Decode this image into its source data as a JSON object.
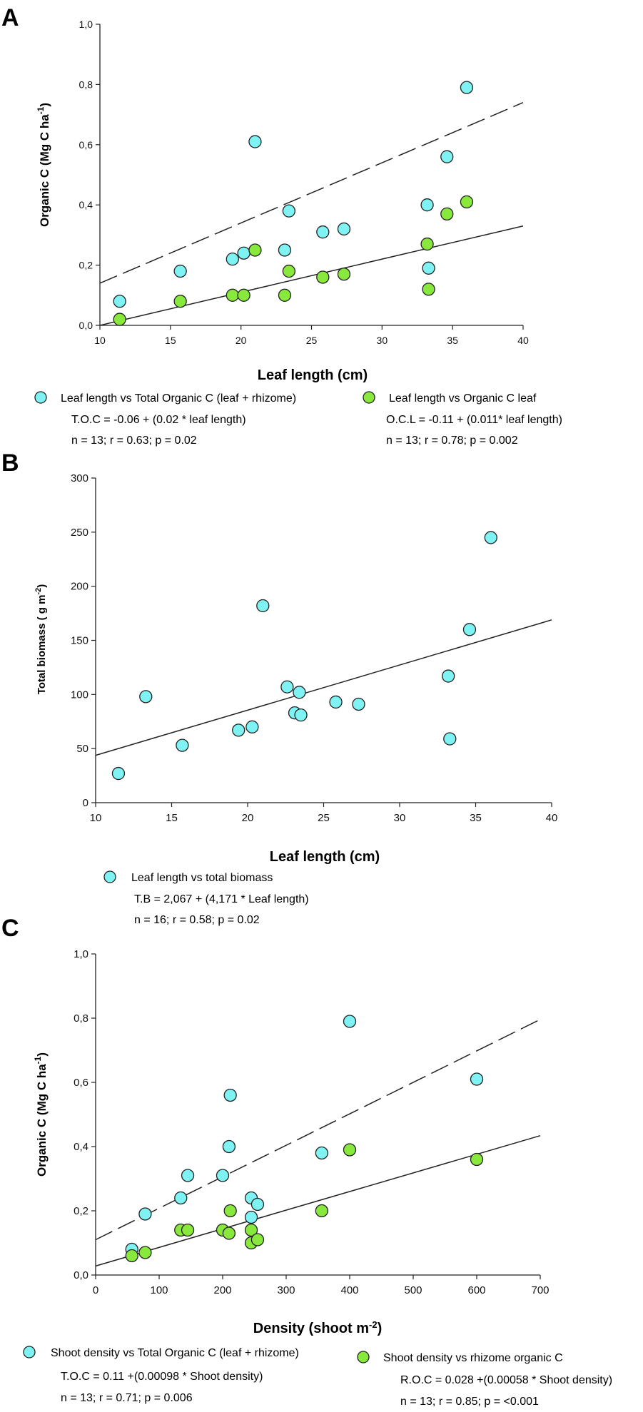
{
  "chart_data": [
    {
      "panel": "A",
      "type": "scatter",
      "xlabel": "Leaf length (cm)",
      "ylabel": "Organic C (Mg C ha",
      "ylabel_sup": "-1",
      "ylabel_tail": ")",
      "xlim": [
        10,
        40
      ],
      "ylim": [
        0,
        1.0
      ],
      "xticks": [
        10,
        15,
        20,
        25,
        30,
        35,
        40
      ],
      "xtick_labels": [
        "10",
        "15",
        "20",
        "25",
        "30",
        "35",
        "40"
      ],
      "yticks": [
        0,
        0.2,
        0.4,
        0.6,
        0.8,
        1.0
      ],
      "ytick_labels": [
        "0,0",
        "0,2",
        "0,4",
        "0,6",
        "0,8",
        "1,0"
      ],
      "series": [
        {
          "name": "Leaf length vs Total Organic C (leaf + rhizome)",
          "color": "#7ff3f3",
          "x": [
            11.4,
            15.7,
            19.4,
            20.2,
            21.0,
            23.1,
            23.4,
            25.8,
            27.3,
            33.2,
            33.3,
            34.6,
            36.0
          ],
          "y": [
            0.08,
            0.18,
            0.22,
            0.24,
            0.61,
            0.25,
            0.38,
            0.31,
            0.32,
            0.4,
            0.19,
            0.56,
            0.79
          ],
          "fit": {
            "intercept": -0.06,
            "slope": 0.02,
            "x_range": [
              10,
              40
            ],
            "style": "dashed"
          },
          "equation": "T.O.C = -0.06 + (0.02 * leaf length)",
          "stats": "n = 13; r = 0.63; p = 0.02"
        },
        {
          "name": "Leaf length vs Organic C leaf",
          "color": "#88e83b",
          "x": [
            11.4,
            15.7,
            19.4,
            20.2,
            21.0,
            23.1,
            23.4,
            25.8,
            27.3,
            33.2,
            33.3,
            34.6,
            36.0
          ],
          "y": [
            0.02,
            0.08,
            0.1,
            0.1,
            0.25,
            0.1,
            0.18,
            0.16,
            0.17,
            0.27,
            0.12,
            0.37,
            0.41
          ],
          "fit": {
            "intercept": -0.11,
            "slope": 0.011,
            "x_range": [
              10,
              40
            ],
            "style": "solid"
          },
          "equation": "O.C.L = -0.11 + (0.011* leaf length)",
          "stats": "n = 13; r = 0.78; p = 0.002"
        }
      ]
    },
    {
      "panel": "B",
      "type": "scatter",
      "xlabel": "Leaf length (cm)",
      "ylabel": "Total biomass ( g m",
      "ylabel_sup": "-2",
      "ylabel_tail": ")",
      "xlim": [
        10,
        40
      ],
      "ylim": [
        0,
        300
      ],
      "xticks": [
        10,
        15,
        20,
        25,
        30,
        35,
        40
      ],
      "xtick_labels": [
        "10",
        "15",
        "20",
        "25",
        "30",
        "35",
        "40"
      ],
      "yticks": [
        0,
        50,
        100,
        150,
        200,
        250,
        300
      ],
      "ytick_labels": [
        "0",
        "50",
        "100",
        "150",
        "200",
        "250",
        "300"
      ],
      "series": [
        {
          "name": "Leaf length vs total biomass",
          "color": "#7ff3f3",
          "x": [
            11.5,
            13.3,
            15.7,
            19.4,
            20.3,
            21.0,
            22.6,
            23.1,
            23.4,
            23.5,
            25.8,
            27.3,
            33.2,
            33.3,
            34.6,
            36.0
          ],
          "y": [
            27,
            98,
            53,
            67,
            70,
            182,
            107,
            83,
            102,
            81,
            93,
            91,
            117,
            59,
            160,
            245
          ],
          "fit": {
            "intercept": 2.067,
            "slope": 4.171,
            "x_range": [
              10,
              40
            ],
            "style": "solid"
          },
          "equation": "T.B = 2,067 + (4,171 * Leaf length)",
          "stats": "n = 16; r = 0.58; p = 0.02"
        }
      ]
    },
    {
      "panel": "C",
      "type": "scatter",
      "xlabel": "Density (shoot m",
      "xlabel_sup": "-2",
      "xlabel_tail": ")",
      "ylabel": "Organic C (Mg C ha",
      "ylabel_sup": "-1",
      "ylabel_tail": ")",
      "xlim": [
        0,
        700
      ],
      "ylim": [
        0,
        1.0
      ],
      "xticks": [
        0,
        100,
        200,
        300,
        400,
        500,
        600,
        700
      ],
      "xtick_labels": [
        "0",
        "100",
        "200",
        "300",
        "400",
        "500",
        "600",
        "700"
      ],
      "yticks": [
        0,
        0.2,
        0.4,
        0.6,
        0.8,
        1.0
      ],
      "ytick_labels": [
        "0,0",
        "0,2",
        "0,4",
        "0,6",
        "0,8",
        "1,0"
      ],
      "series": [
        {
          "name": "Shoot density vs Total Organic C (leaf + rhizome)",
          "color": "#7ff3f3",
          "x": [
            57,
            78,
            134,
            145,
            200,
            210,
            212,
            245,
            245,
            255,
            356,
            400,
            600
          ],
          "y": [
            0.08,
            0.19,
            0.24,
            0.31,
            0.31,
            0.4,
            0.56,
            0.24,
            0.18,
            0.22,
            0.38,
            0.79,
            0.61
          ],
          "fit": {
            "intercept": 0.11,
            "slope": 0.00098,
            "x_range": [
              0,
              700
            ],
            "style": "dashed"
          },
          "equation": "T.O.C = 0.11 +(0.00098 * Shoot density)",
          "stats": "n = 13; r = 0.71; p = 0.006"
        },
        {
          "name": "Shoot density vs rhizome organic C",
          "color": "#88e83b",
          "x": [
            57,
            78,
            134,
            145,
            200,
            210,
            212,
            245,
            245,
            255,
            356,
            400,
            600
          ],
          "y": [
            0.06,
            0.07,
            0.14,
            0.14,
            0.14,
            0.13,
            0.2,
            0.14,
            0.1,
            0.11,
            0.2,
            0.39,
            0.36
          ],
          "fit": {
            "intercept": 0.028,
            "slope": 0.00058,
            "x_range": [
              0,
              700
            ],
            "style": "solid"
          },
          "equation": "R.O.C = 0.028 +(0.00058 * Shoot density)",
          "stats": "n = 13; r = 0.85; p = <0.001"
        }
      ]
    }
  ]
}
